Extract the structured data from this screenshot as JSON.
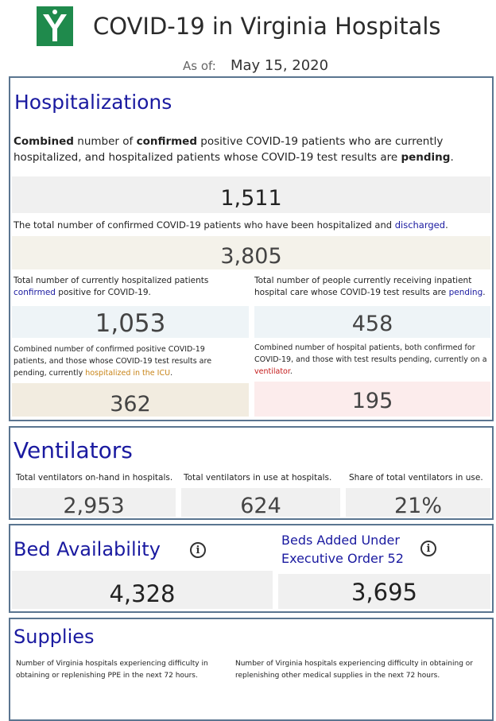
{
  "header": {
    "title": "COVID-19 in Virginia Hospitals",
    "as_of_label": "As of:",
    "as_of_date": "May 15, 2020"
  },
  "hospitalizations": {
    "heading": "Hospitalizations",
    "intro": {
      "p1": "Combined",
      "p2": " number of ",
      "p3": "confirmed",
      "p4": " positive COVID-19 patients who are currently hospitalized, and hospitalized patients whose COVID-19 test results are ",
      "p5": "pending",
      "p6": "."
    },
    "combined_value": "1,511",
    "discharged_desc": "The total number of confirmed COVID-19 patients who have been hospitalized and ",
    "discharged_word": "discharged",
    "discharged_end": ".",
    "discharged_value": "3,805",
    "confirmed_desc": "Total number of currently hospitalized patients ",
    "confirmed_word": "confirmed",
    "confirmed_end": " positive for COVID-19.",
    "confirmed_value": "1,053",
    "pending_desc": "Total number of people currently receiving inpatient hospital care whose COVID-19 test results are ",
    "pending_word": "pending",
    "pending_end": ".",
    "pending_value": "458",
    "icu_desc": "Combined number of confirmed positive COVID-19 patients, and those whose COVID-19 test results are pending, currently ",
    "icu_word": "hospitalized in the ICU",
    "icu_end": ".",
    "icu_value": "362",
    "vent_desc": "Combined number of hospital patients, both confirmed for COVID-19, and those with test results pending, currently on a ",
    "vent_word": "ventilator",
    "vent_end": ".",
    "vent_value": "195"
  },
  "ventilators": {
    "heading": "Ventilators",
    "onhand_label": "Total ventilators on-hand in hospitals.",
    "onhand_value": "2,953",
    "inuse_label": "Total ventilators in use at hospitals.",
    "inuse_value": "624",
    "share_label": "Share of total ventilators in use.",
    "share_value": "21%"
  },
  "beds": {
    "heading": "Bed Availability",
    "value": "4,328",
    "added_heading_line1": "Beds Added Under",
    "added_heading_line2": "Executive Order 52",
    "added_value": "3,695",
    "info_glyph": "i"
  },
  "supplies": {
    "heading": "Supplies",
    "ppe_desc": "Number of Virginia hospitals experiencing difficulty in obtaining or replenishing PPE in the next 72 hours.",
    "other_desc": "Number of Virginia hospitals experiencing difficulty in obtaining or replenishing other medical supplies in the next 72 hours."
  },
  "colors": {
    "heading_blue": "#1a1aa0",
    "brand_green": "#1f8a4c",
    "panel_border": "#5a7590"
  },
  "icons": {
    "logo": "vhha-logo",
    "info": "info-icon"
  }
}
